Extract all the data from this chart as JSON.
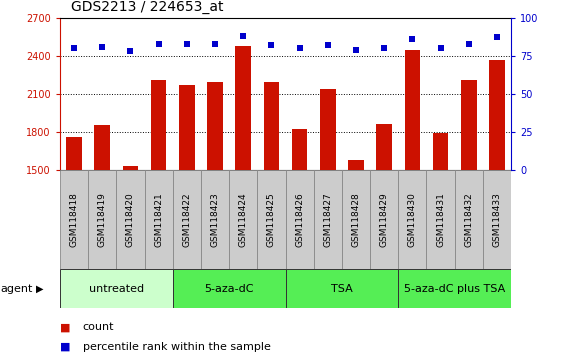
{
  "title": "GDS2213 / 224653_at",
  "samples": [
    "GSM118418",
    "GSM118419",
    "GSM118420",
    "GSM118421",
    "GSM118422",
    "GSM118423",
    "GSM118424",
    "GSM118425",
    "GSM118426",
    "GSM118427",
    "GSM118428",
    "GSM118429",
    "GSM118430",
    "GSM118431",
    "GSM118432",
    "GSM118433"
  ],
  "counts": [
    1760,
    1852,
    1530,
    2205,
    2170,
    2195,
    2480,
    2195,
    1820,
    2135,
    1580,
    1862,
    2445,
    1793,
    2205,
    2365
  ],
  "percentiles": [
    80,
    81,
    78,
    83,
    83,
    83,
    88,
    82,
    80,
    82,
    79,
    80,
    86,
    80,
    83,
    87
  ],
  "bar_color": "#cc1100",
  "dot_color": "#0000cc",
  "ylim_left": [
    1500,
    2700
  ],
  "ylim_right": [
    0,
    100
  ],
  "yticks_left": [
    1500,
    1800,
    2100,
    2400,
    2700
  ],
  "yticks_right": [
    0,
    25,
    50,
    75,
    100
  ],
  "group_defs": [
    {
      "start": 0,
      "end": 3,
      "label": "untreated",
      "color": "#ccffcc"
    },
    {
      "start": 4,
      "end": 7,
      "label": "5-aza-dC",
      "color": "#55ee55"
    },
    {
      "start": 8,
      "end": 11,
      "label": "TSA",
      "color": "#55ee55"
    },
    {
      "start": 12,
      "end": 15,
      "label": "5-aza-dC plus TSA",
      "color": "#55ee55"
    }
  ],
  "sample_box_color": "#cccccc",
  "sample_box_edge": "#888888",
  "legend_count_label": "count",
  "legend_pct_label": "percentile rank within the sample",
  "agent_label": "agent",
  "background_color": "#ffffff",
  "title_fontsize": 10,
  "tick_fontsize": 7,
  "sample_fontsize": 6.5,
  "group_fontsize": 8,
  "legend_fontsize": 8
}
